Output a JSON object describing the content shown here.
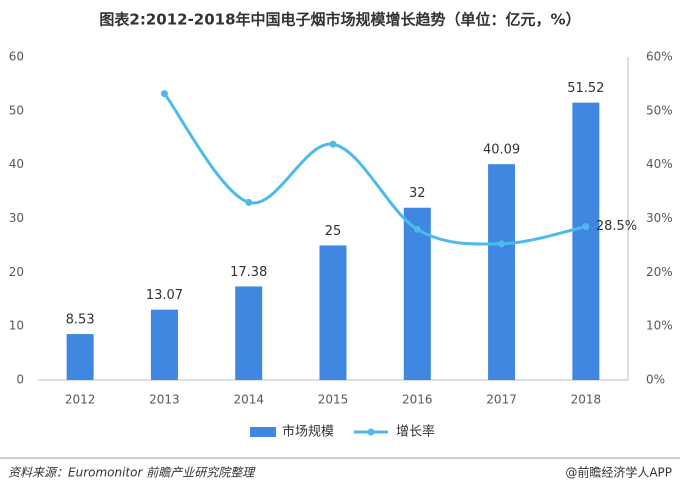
{
  "chart_data": {
    "type": "bar_line",
    "title": "图表2:2012-2018年中国电子烟市场规模增长趋势（单位：亿元，%）",
    "categories": [
      "2012",
      "2013",
      "2014",
      "2015",
      "2016",
      "2017",
      "2018"
    ],
    "series": [
      {
        "name": "市场规模",
        "type": "bar",
        "color": "#3f87e0",
        "values": [
          8.53,
          13.07,
          17.38,
          25,
          32,
          40.09,
          51.52
        ]
      },
      {
        "name": "增长率",
        "type": "line",
        "axis": "y2",
        "color": "#4dbaeb",
        "values": [
          null,
          53.2,
          33.0,
          43.8,
          28.0,
          25.3,
          28.5
        ],
        "value_labels": [
          null,
          null,
          null,
          null,
          null,
          null,
          "28.5%"
        ]
      }
    ],
    "ylim": [
      0,
      60
    ],
    "yticks": [
      0,
      10,
      20,
      30,
      40,
      50,
      60
    ],
    "y2lim": [
      0,
      60
    ],
    "y2ticks": [
      {
        "value": 0,
        "label": "0%"
      },
      {
        "value": 10,
        "label": "10%"
      },
      {
        "value": 20,
        "label": "20%"
      },
      {
        "value": 30,
        "label": "30%"
      },
      {
        "value": 40,
        "label": "40%"
      },
      {
        "value": 50,
        "label": "50%"
      },
      {
        "value": 60,
        "label": "60%"
      }
    ],
    "legend": "bottom",
    "source": "资料来源：Euromonitor 前瞻产业研究院整理",
    "credit": "@前瞻经济学人APP"
  }
}
